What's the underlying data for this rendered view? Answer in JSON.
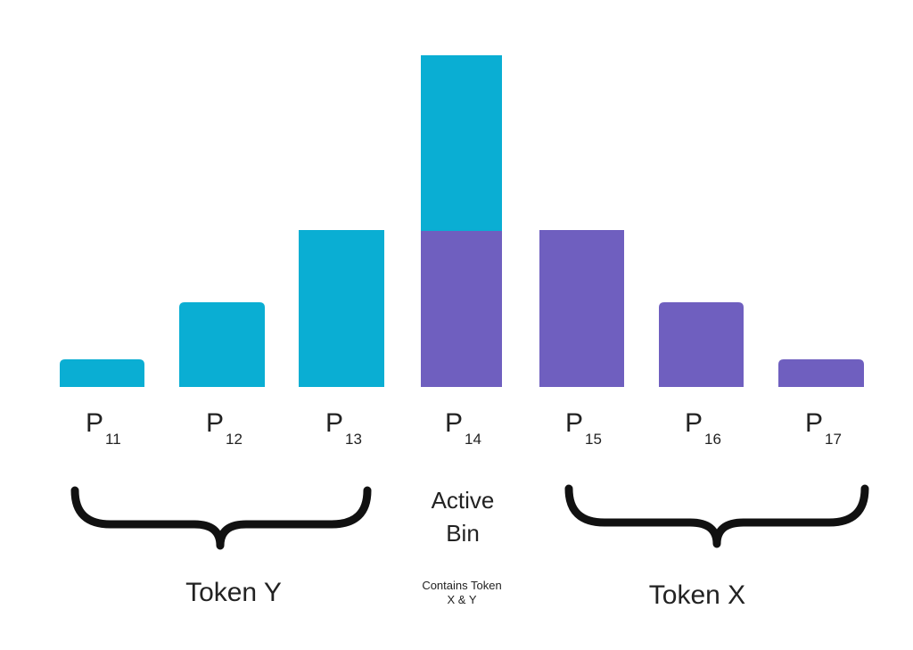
{
  "bins": [
    {
      "base": "P",
      "sub": "11"
    },
    {
      "base": "P",
      "sub": "12"
    },
    {
      "base": "P",
      "sub": "13"
    },
    {
      "base": "P",
      "sub": "14"
    },
    {
      "base": "P",
      "sub": "15"
    },
    {
      "base": "P",
      "sub": "16"
    },
    {
      "base": "P",
      "sub": "17"
    }
  ],
  "token_y": "Token Y",
  "token_x": "Token X",
  "active_bin": {
    "lines": [
      "Active",
      "Bin"
    ],
    "note": [
      "Contains Token",
      "X & Y"
    ]
  }
}
